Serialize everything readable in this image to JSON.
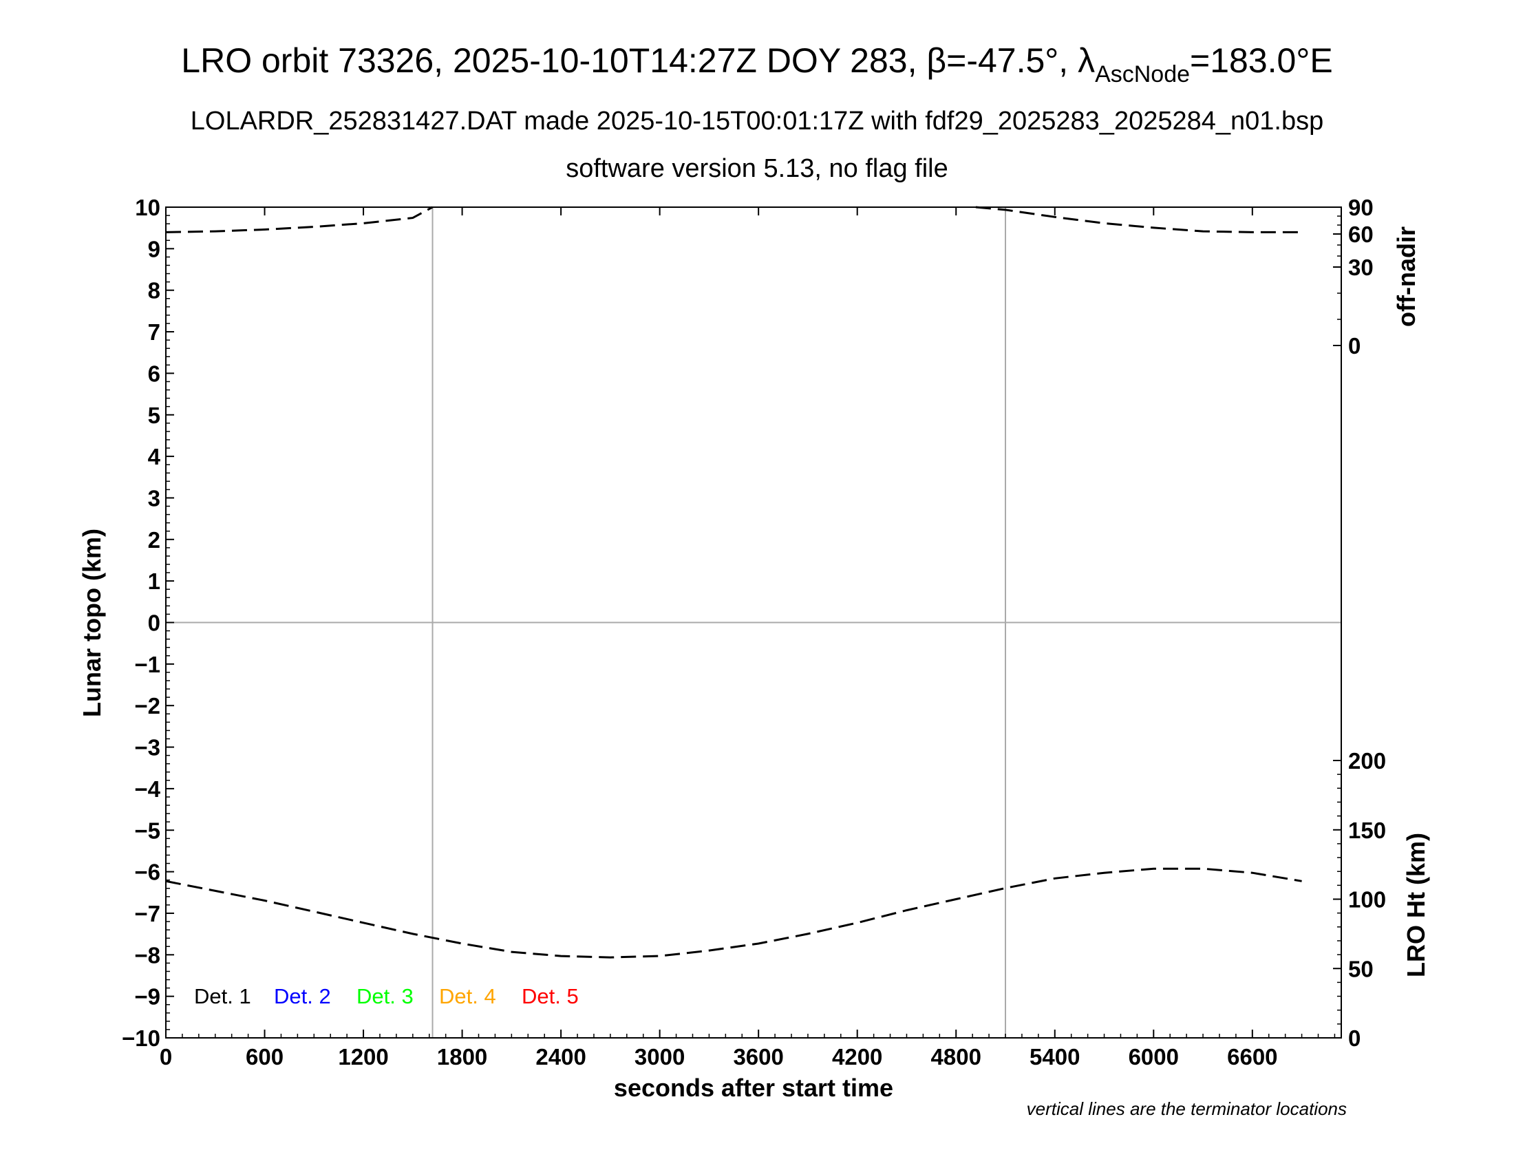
{
  "chart_data": {
    "type": "line",
    "title": {
      "main_prefix": "LRO orbit 73326, 2025-10-10T14:27Z DOY 283, β=-47.5°, λ",
      "main_subscript": "AscNode",
      "main_suffix": "=183.0°E",
      "line2": "LOLARDR_252831427.DAT made 2025-10-15T00:01:17Z with fdf29_2025283_2025284_n01.bsp",
      "line3": "software version 5.13, no flag file"
    },
    "xlabel": "seconds after start time",
    "ylabel": "Lunar topo (km)",
    "y2label_top": "off-nadir",
    "y2label_bottom": "LRO Ht (km)",
    "note": "vertical lines are the terminator locations",
    "xlim": [
      0,
      7140
    ],
    "ylim": [
      -10,
      10
    ],
    "x_ticks": [
      "0",
      "600",
      "1200",
      "1800",
      "2400",
      "3000",
      "3600",
      "4200",
      "4800",
      "5400",
      "6000",
      "6600"
    ],
    "y_ticks": [
      "−10",
      "−9",
      "−8",
      "−7",
      "−6",
      "−5",
      "−4",
      "−3",
      "−2",
      "−1",
      "0",
      "1",
      "2",
      "3",
      "4",
      "5",
      "6",
      "7",
      "8",
      "9",
      "10"
    ],
    "off_nadir_axis": {
      "ticks": [
        "90",
        "60",
        "30",
        "0"
      ],
      "values": [
        90,
        60,
        30,
        0
      ]
    },
    "height_axis": {
      "ticks": [
        "200",
        "150",
        "100",
        "50",
        "0"
      ],
      "values": [
        200,
        150,
        100,
        50,
        0
      ],
      "range": [
        0,
        240
      ]
    },
    "terminators_s": [
      1620,
      5100
    ],
    "legend": [
      {
        "label": "Det. 1",
        "color": "#000000"
      },
      {
        "label": "Det. 2",
        "color": "#0000ff"
      },
      {
        "label": "Det. 3",
        "color": "#00ff00"
      },
      {
        "label": "Det. 4",
        "color": "#ffa500"
      },
      {
        "label": "Det. 5",
        "color": "#ff0000"
      }
    ],
    "series": [
      {
        "axis": "height",
        "points": [
          [
            0,
            113
          ],
          [
            300,
            106
          ],
          [
            600,
            99
          ],
          [
            900,
            91
          ],
          [
            1200,
            83
          ],
          [
            1500,
            75
          ],
          [
            1800,
            68
          ],
          [
            2100,
            62
          ],
          [
            2400,
            59
          ],
          [
            2700,
            58
          ],
          [
            3000,
            59
          ],
          [
            3300,
            63
          ],
          [
            3600,
            68
          ],
          [
            3900,
            75
          ],
          [
            4200,
            83
          ],
          [
            4500,
            92
          ],
          [
            4800,
            100
          ],
          [
            5100,
            108
          ],
          [
            5400,
            115
          ],
          [
            5700,
            119
          ],
          [
            6000,
            122
          ],
          [
            6300,
            122
          ],
          [
            6600,
            119
          ],
          [
            6900,
            113
          ]
        ]
      },
      {
        "axis": "off_nadir",
        "points": [
          [
            0,
            62
          ],
          [
            300,
            63
          ],
          [
            600,
            65
          ],
          [
            900,
            68
          ],
          [
            1200,
            72
          ],
          [
            1500,
            78
          ],
          [
            1620,
            90
          ],
          [
            4920,
            90
          ],
          [
            5100,
            87
          ],
          [
            5400,
            79
          ],
          [
            5700,
            72
          ],
          [
            6000,
            67
          ],
          [
            6300,
            63
          ],
          [
            6600,
            62
          ],
          [
            6900,
            62
          ]
        ]
      }
    ]
  }
}
